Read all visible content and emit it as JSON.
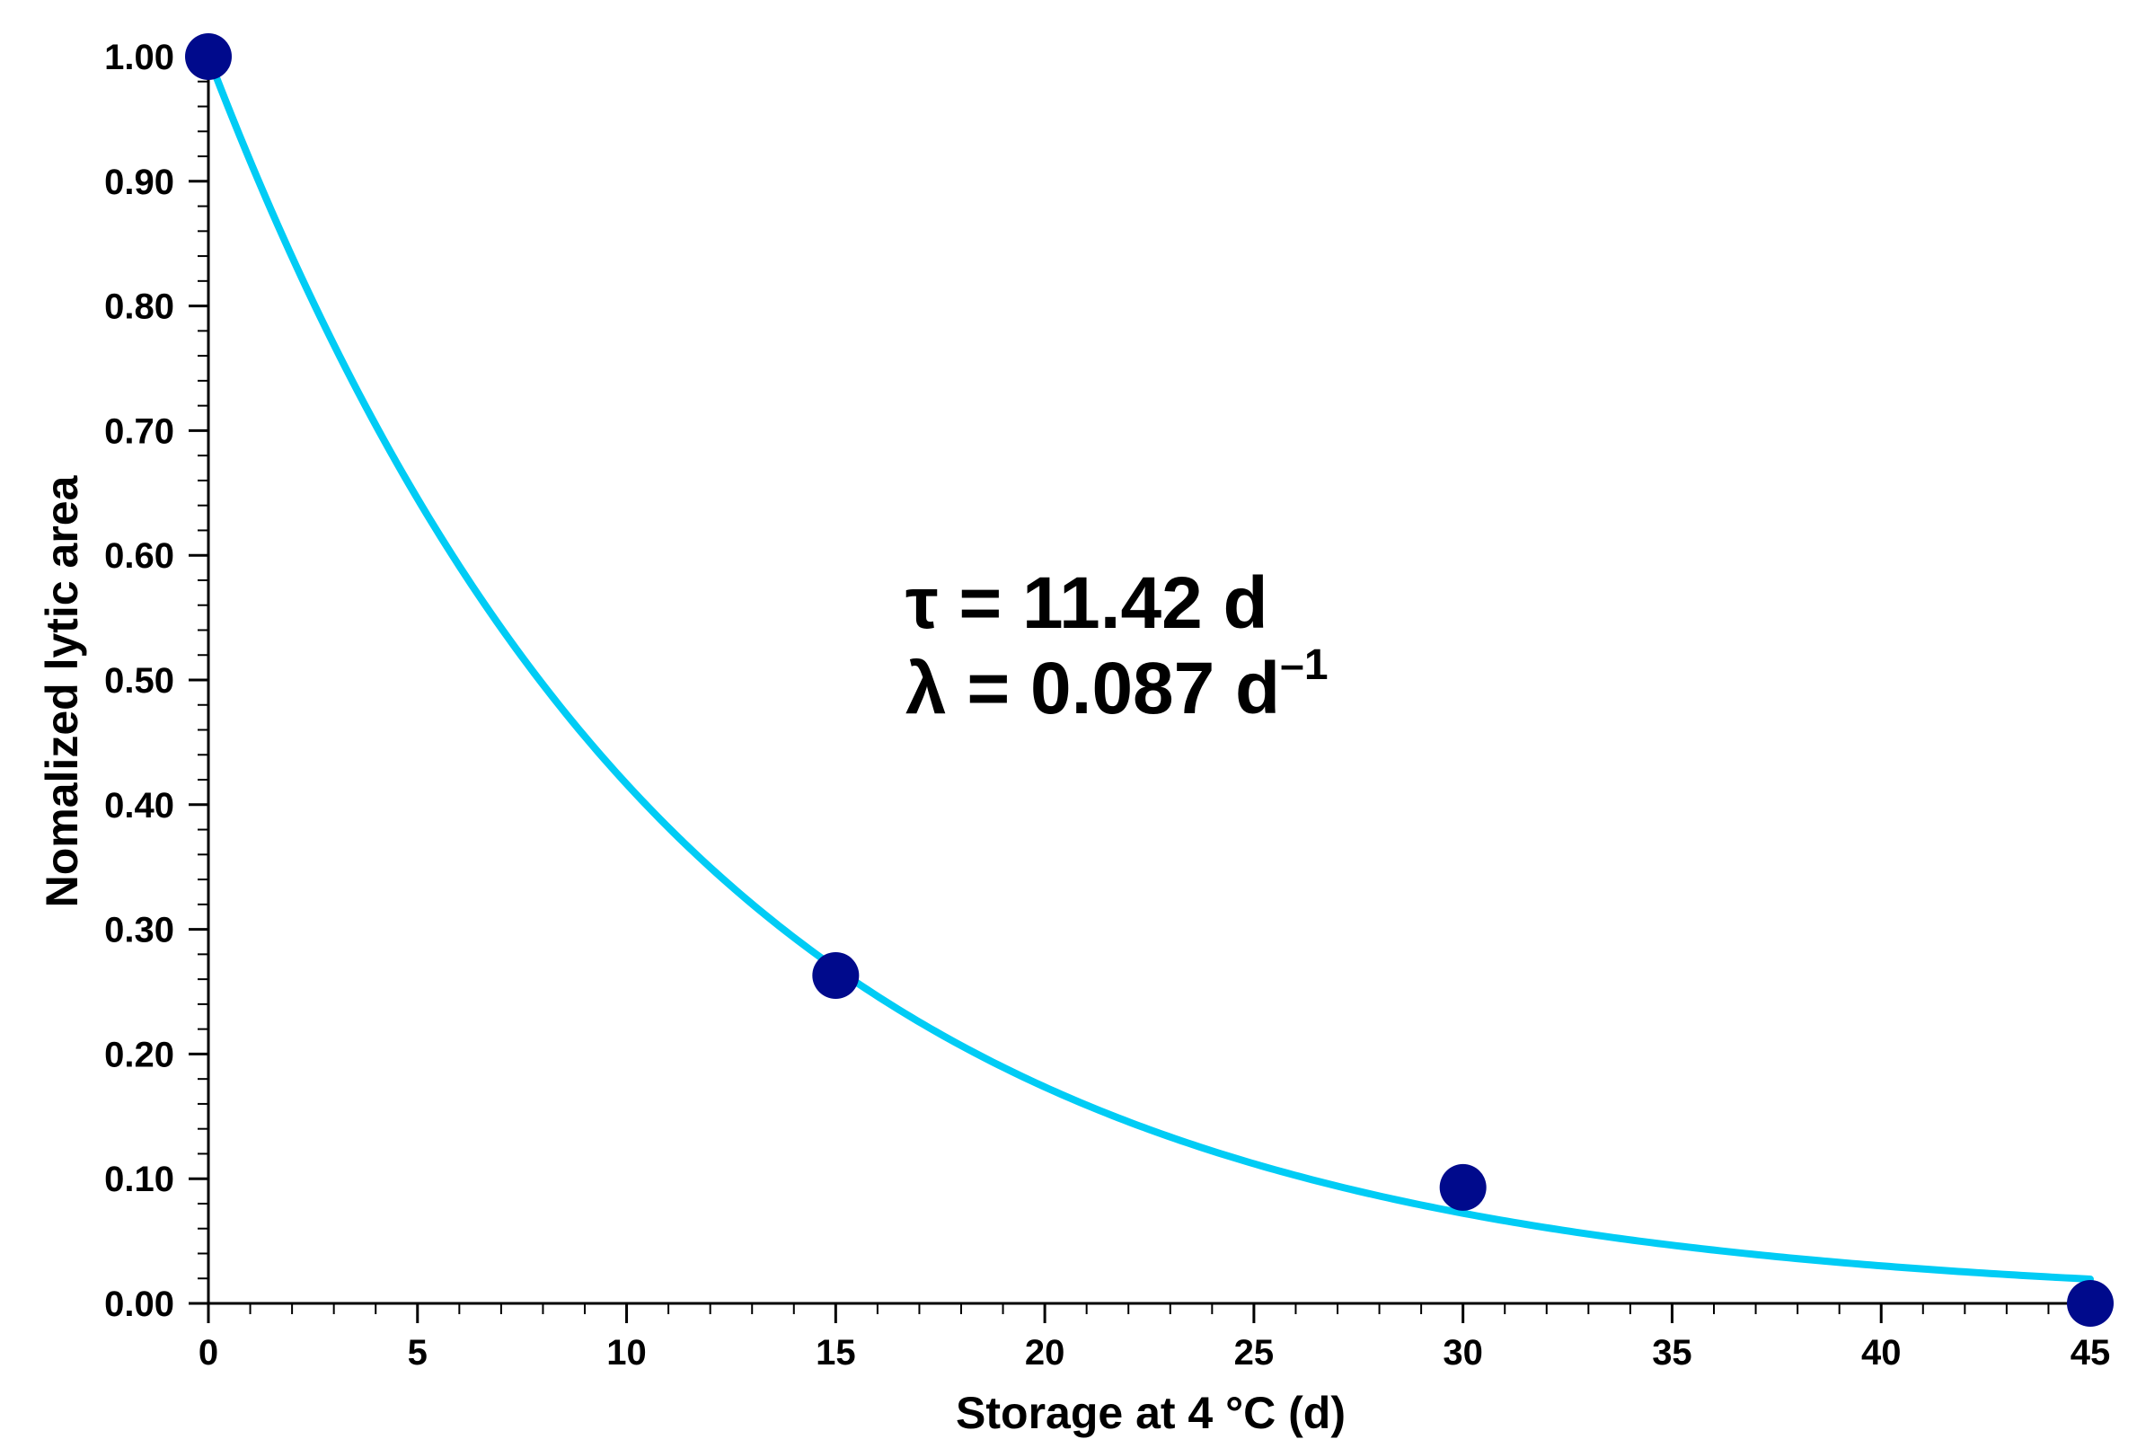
{
  "chart_data": {
    "type": "scatter",
    "title": "",
    "xlabel": "Storage at 4 °C (d)",
    "ylabel": "Nomalized lytic area",
    "xlim": [
      0,
      45
    ],
    "ylim": [
      0,
      1
    ],
    "x_ticks": [
      "0",
      "5",
      "10",
      "15",
      "20",
      "25",
      "30",
      "35",
      "40",
      "45"
    ],
    "y_ticks": [
      "0.00",
      "0.10",
      "0.20",
      "0.30",
      "0.40",
      "0.50",
      "0.60",
      "0.70",
      "0.80",
      "0.90",
      "1.00"
    ],
    "grid": false,
    "legend": "none",
    "series": [
      {
        "kind": "scatter",
        "x": [
          0,
          15,
          30,
          45
        ],
        "y": [
          1.0,
          0.263,
          0.093,
          0.0
        ],
        "color": "#000a8c"
      },
      {
        "kind": "fit-line",
        "model": "exponential decay",
        "tau": 11.42,
        "lambda": 0.087,
        "color": "#00ccf5"
      }
    ],
    "annotations": {
      "tau_line": "τ = 11.42 d",
      "lambda_line": "λ = 0.087 d",
      "lambda_exponent": "–1"
    }
  }
}
